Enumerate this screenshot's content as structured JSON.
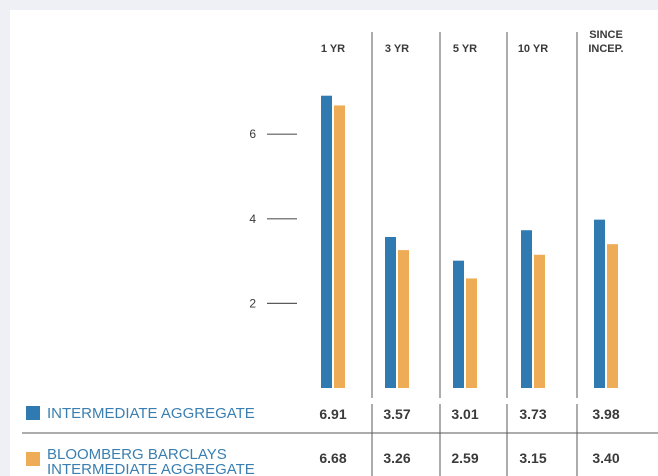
{
  "colors": {
    "fund": "#2f7ab1",
    "index": "#eeac56",
    "label_blue": "#3a7fb0",
    "rule": "#5a5a5a",
    "text": "#3a3a3a"
  },
  "chart_data": {
    "type": "bar",
    "categories": [
      "1 YR",
      "3 YR",
      "5 YR",
      "10 YR",
      "SINCE INCEP."
    ],
    "series": [
      {
        "name": "INTERMEDIATE AGGREGATE",
        "values": [
          6.91,
          3.57,
          3.01,
          3.73,
          3.98
        ]
      },
      {
        "name": "BLOOMBERG BARCLAYS INTERMEDIATE AGGREGATE",
        "values": [
          6.68,
          3.26,
          2.59,
          3.15,
          3.4
        ]
      }
    ],
    "y_ticks": [
      2,
      4,
      6
    ],
    "ylim": [
      0,
      7.0
    ],
    "value_labels": [
      [
        "6.91",
        "3.57",
        "3.01",
        "3.73",
        "3.98"
      ],
      [
        "6.68",
        "3.26",
        "2.59",
        "3.15",
        "3.40"
      ]
    ],
    "header_lines": [
      [
        "1 YR"
      ],
      [
        "3 YR"
      ],
      [
        "5 YR"
      ],
      [
        "10 YR"
      ],
      [
        "SINCE",
        "INCEP."
      ]
    ],
    "legend_lines": [
      [
        "INTERMEDIATE AGGREGATE"
      ],
      [
        "BLOOMBERG BARCLAYS",
        "INTERMEDIATE AGGREGATE"
      ]
    ]
  }
}
